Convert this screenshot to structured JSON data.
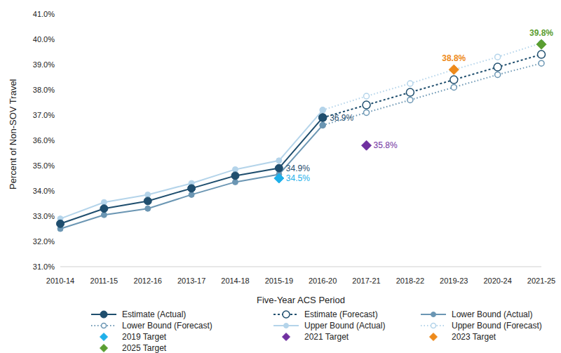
{
  "chart_data": {
    "type": "line",
    "x_label": "Five-Year ACS Period",
    "y_label": "Percent of Non-SOV Travel",
    "categories": [
      "2010-14",
      "2011-15",
      "2012-16",
      "2013-17",
      "2014-18",
      "2015-19",
      "2016-20",
      "2017-21",
      "2018-22",
      "2019-23",
      "2020-24",
      "2021-25"
    ],
    "ylim": [
      31,
      41
    ],
    "yticks": [
      {
        "value": 31,
        "label": "31.0%"
      },
      {
        "value": 32,
        "label": "32.0%"
      },
      {
        "value": 33,
        "label": "33.0%"
      },
      {
        "value": 34,
        "label": "34.0%"
      },
      {
        "value": 35,
        "label": "35.0%"
      },
      {
        "value": 36,
        "label": "36.0%"
      },
      {
        "value": 37,
        "label": "37.0%"
      },
      {
        "value": 38,
        "label": "38.0%"
      },
      {
        "value": 39,
        "label": "39.0%"
      },
      {
        "value": 40,
        "label": "40.0%"
      },
      {
        "value": 41,
        "label": "41.0%"
      }
    ],
    "grid": false,
    "legend": "bottom",
    "series": [
      {
        "name": "Estimate (Actual)",
        "type": "line",
        "color": "#1f4e6e",
        "marker": "circle",
        "line_style": "solid",
        "values": [
          32.7,
          33.3,
          33.6,
          34.1,
          34.6,
          34.9,
          36.9,
          null,
          null,
          null,
          null,
          null
        ],
        "value_labels": [
          null,
          null,
          null,
          null,
          null,
          "34.9%",
          "36.9%",
          null,
          null,
          null,
          null,
          null
        ]
      },
      {
        "name": "Estimate (Forecast)",
        "type": "line",
        "color": "#1f4e6e",
        "marker": "open_circle",
        "line_style": "dashed",
        "values": [
          null,
          null,
          null,
          null,
          null,
          null,
          36.9,
          37.4,
          37.9,
          38.4,
          38.9,
          39.4
        ]
      },
      {
        "name": "Lower Bound (Actual)",
        "type": "line",
        "color": "#6b96b3",
        "marker": "circle",
        "line_style": "solid",
        "values": [
          32.5,
          33.05,
          33.3,
          33.85,
          34.35,
          34.65,
          36.6,
          null,
          null,
          null,
          null,
          null
        ]
      },
      {
        "name": "Lower Bound (Forecast)",
        "type": "line",
        "color": "#6b96b3",
        "marker": "open_circle",
        "line_style": "dotted",
        "values": [
          null,
          null,
          null,
          null,
          null,
          null,
          36.6,
          37.1,
          37.6,
          38.1,
          38.6,
          39.05
        ]
      },
      {
        "name": "Upper Bound (Actual)",
        "type": "line",
        "color": "#b4d4ea",
        "marker": "circle",
        "line_style": "solid",
        "values": [
          32.9,
          33.55,
          33.85,
          34.3,
          34.85,
          35.2,
          37.2,
          null,
          null,
          null,
          null,
          null
        ]
      },
      {
        "name": "Upper Bound (Forecast)",
        "type": "line",
        "color": "#b4d4ea",
        "marker": "open_circle",
        "line_style": "dotted",
        "values": [
          null,
          null,
          null,
          null,
          null,
          null,
          37.2,
          37.75,
          38.25,
          38.8,
          39.3,
          39.85
        ]
      },
      {
        "name": "2019 Target",
        "type": "scatter",
        "color": "#1eb0ea",
        "marker": "diamond",
        "line_style": "none",
        "values": [
          null,
          null,
          null,
          null,
          null,
          34.5,
          null,
          null,
          null,
          null,
          null,
          null
        ],
        "value_labels": [
          null,
          null,
          null,
          null,
          null,
          "34.5%",
          null,
          null,
          null,
          null,
          null,
          null
        ]
      },
      {
        "name": "2021 Target",
        "type": "scatter",
        "color": "#7030a0",
        "marker": "diamond",
        "line_style": "none",
        "values": [
          null,
          null,
          null,
          null,
          null,
          null,
          null,
          35.8,
          null,
          null,
          null,
          null
        ],
        "value_labels": [
          null,
          null,
          null,
          null,
          null,
          null,
          null,
          "35.8%",
          null,
          null,
          null,
          null
        ]
      },
      {
        "name": "2023 Target",
        "type": "scatter",
        "color": "#ee8a1b",
        "marker": "diamond",
        "line_style": "none",
        "values": [
          null,
          null,
          null,
          null,
          null,
          null,
          null,
          null,
          null,
          38.8,
          null,
          null
        ],
        "value_labels": [
          null,
          null,
          null,
          null,
          null,
          null,
          null,
          null,
          null,
          "38.8%",
          null,
          null
        ]
      },
      {
        "name": "2025 Target",
        "type": "scatter",
        "color": "#5a9e31",
        "marker": "diamond",
        "line_style": "none",
        "values": [
          null,
          null,
          null,
          null,
          null,
          null,
          null,
          null,
          null,
          null,
          null,
          39.8
        ],
        "value_labels": [
          null,
          null,
          null,
          null,
          null,
          null,
          null,
          null,
          null,
          null,
          null,
          "39.8%"
        ]
      }
    ]
  }
}
